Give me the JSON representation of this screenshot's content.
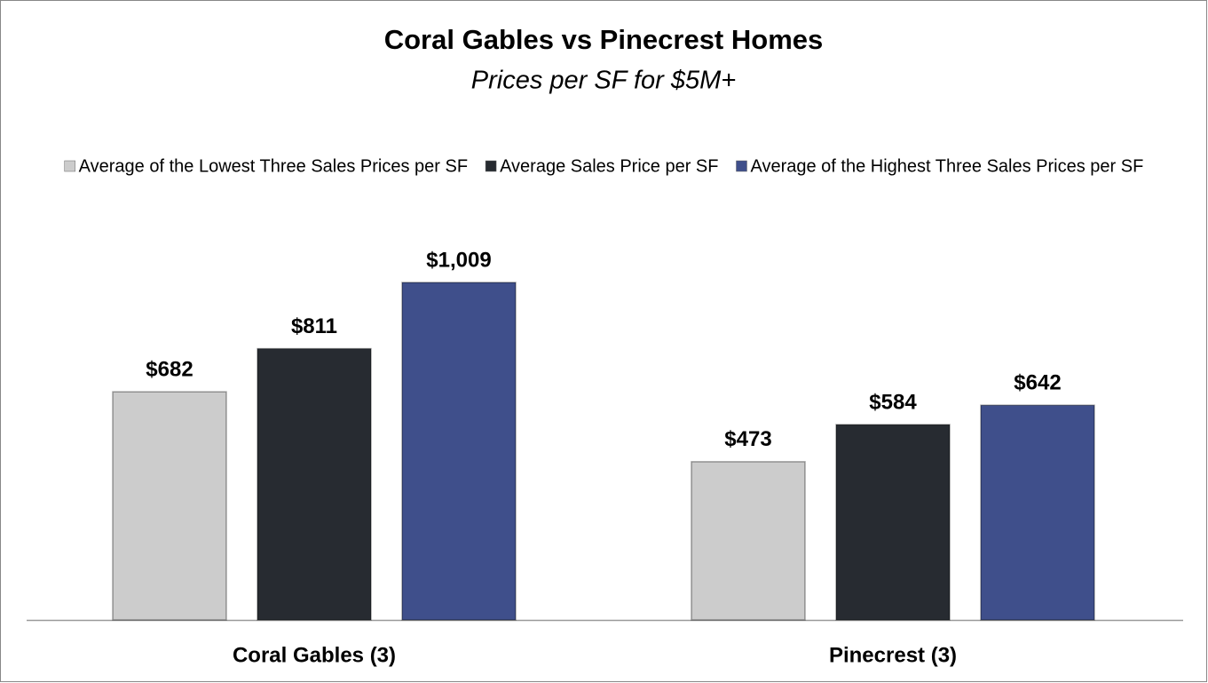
{
  "chart_data": {
    "type": "bar",
    "title": "Coral Gables vs Pinecrest Homes",
    "subtitle": "Prices per SF for $5M+",
    "categories": [
      "Coral Gables (3)",
      "Pinecrest (3)"
    ],
    "legend": "top",
    "series": [
      {
        "name": "Average of the Lowest Three Sales Prices per SF",
        "color": "#cccccc",
        "values": [
          682,
          473
        ],
        "value_labels": [
          "$682",
          "$473"
        ]
      },
      {
        "name": "Average Sales Price per SF",
        "color": "#272b31",
        "values": [
          811,
          584
        ],
        "value_labels": [
          "$811",
          "$584"
        ]
      },
      {
        "name": "Average of the Highest Three Sales Prices per SF",
        "color": "#3f4f8b",
        "values": [
          1009,
          642
        ],
        "value_labels": [
          "$1,009",
          "$642"
        ]
      }
    ]
  }
}
